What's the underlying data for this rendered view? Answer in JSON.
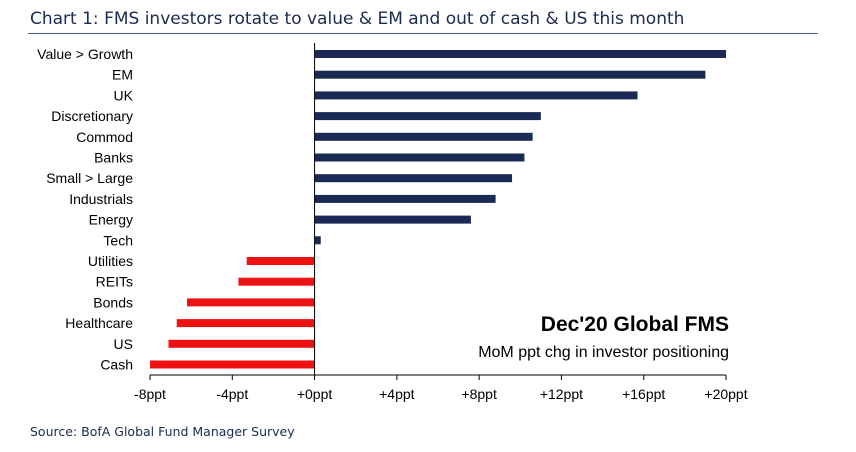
{
  "header": {
    "title": "Chart 1: FMS investors rotate to value & EM and out of cash & US this month"
  },
  "footer": {
    "source": "Source: BofA Global Fund Manager Survey"
  },
  "colors": {
    "positive_bar": "#1b2a55",
    "negative_bar": "#ee1111",
    "title_text": "#1a2b50",
    "title_rule": "#3f5f8f"
  },
  "chart_data": {
    "type": "bar",
    "orientation": "horizontal",
    "categories": [
      "Value > Growth",
      "EM",
      "UK",
      "Discretionary",
      "Commod",
      "Banks",
      "Small > Large",
      "Industrials",
      "Energy",
      "Tech",
      "Utilities",
      "REITs",
      "Bonds",
      "Healthcare",
      "US",
      "Cash"
    ],
    "values": [
      20,
      19,
      15.7,
      11,
      10.6,
      10.2,
      9.6,
      8.8,
      7.6,
      0.3,
      -3.3,
      -3.7,
      -6.2,
      -6.7,
      -7.1,
      -8
    ],
    "xlim": [
      -8,
      20
    ],
    "xticks": [
      -8,
      -4,
      0,
      4,
      8,
      12,
      16,
      20
    ],
    "xtick_labels": [
      "-8ppt",
      "-4ppt",
      "+0ppt",
      "+4ppt",
      "+8ppt",
      "+12ppt",
      "+16ppt",
      "+20ppt"
    ],
    "annotation_title": "Dec'20 Global FMS",
    "annotation_subtitle": "MoM ppt chg in investor positioning",
    "grid": false,
    "legend": "none"
  }
}
